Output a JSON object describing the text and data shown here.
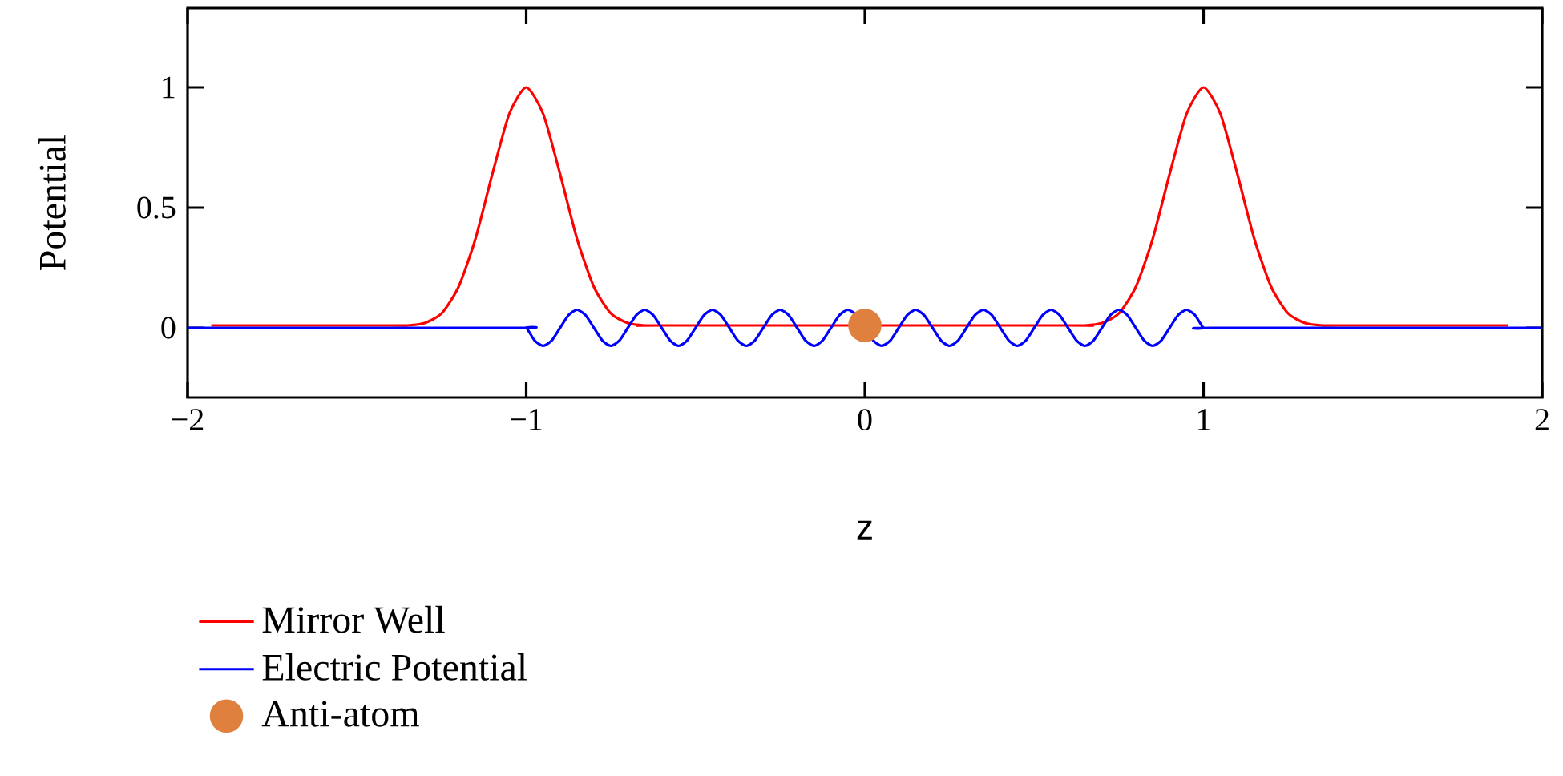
{
  "chart_data": {
    "type": "line",
    "xlabel": "z",
    "ylabel": "Potential",
    "xlim": [
      -2,
      2
    ],
    "ylim": [
      -0.29,
      1.33
    ],
    "xticks": [
      {
        "value": -2,
        "label": "−2"
      },
      {
        "value": -1,
        "label": "−1"
      },
      0,
      1,
      2
    ],
    "yticks": [
      0,
      0.5,
      1
    ],
    "legend": "bottom left",
    "series": [
      {
        "name": "Mirror Well",
        "color": "#ff0000",
        "x": [
          -1.93,
          -1.4,
          -1.35,
          -1.3,
          -1.25,
          -1.2,
          -1.15,
          -1.1,
          -1.05,
          -1,
          -0.95,
          -0.9,
          -0.85,
          -0.8,
          -0.75,
          -0.7,
          -0.65,
          -0.6,
          0.6,
          0.65,
          0.7,
          0.75,
          0.8,
          0.85,
          0.9,
          0.95,
          1,
          1.05,
          1.1,
          1.15,
          1.2,
          1.25,
          1.3,
          1.35,
          1.4,
          1.9
        ],
        "values": [
          0.01,
          0.01,
          0.01,
          0.02,
          0.06,
          0.17,
          0.37,
          0.64,
          0.89,
          1,
          0.89,
          0.64,
          0.37,
          0.17,
          0.06,
          0.02,
          0.01,
          0.01,
          0.01,
          0.01,
          0.02,
          0.06,
          0.17,
          0.37,
          0.64,
          0.89,
          1,
          0.89,
          0.64,
          0.37,
          0.17,
          0.06,
          0.02,
          0.01,
          0.01,
          0.01
        ]
      },
      {
        "name": "Electric Potential",
        "color": "#0000ff",
        "x": [
          -2,
          -1.025,
          -1,
          -0.975,
          -0.95,
          -0.925,
          -0.9,
          -0.875,
          -0.85,
          -0.825,
          -0.8,
          -0.775,
          -0.75,
          -0.725,
          -0.7,
          -0.675,
          -0.65,
          -0.625,
          -0.6,
          -0.575,
          -0.55,
          -0.525,
          -0.5,
          -0.475,
          -0.45,
          -0.425,
          -0.4,
          -0.375,
          -0.35,
          -0.325,
          -0.3,
          -0.275,
          -0.25,
          -0.225,
          -0.2,
          -0.175,
          -0.15,
          -0.125,
          -0.1,
          -0.075,
          -0.05,
          -0.025,
          0,
          0.025,
          0.05,
          0.075,
          0.1,
          0.125,
          0.15,
          0.175,
          0.2,
          0.225,
          0.25,
          0.275,
          0.3,
          0.325,
          0.35,
          0.375,
          0.4,
          0.425,
          0.45,
          0.475,
          0.5,
          0.525,
          0.55,
          0.575,
          0.6,
          0.625,
          0.65,
          0.675,
          0.7,
          0.725,
          0.75,
          0.775,
          0.8,
          0.825,
          0.85,
          0.875,
          0.9,
          0.925,
          0.95,
          0.975,
          1,
          1.025,
          2
        ],
        "values": [
          0,
          0,
          0,
          -0.053,
          -0.075,
          -0.053,
          0,
          0.053,
          0.075,
          0.053,
          0,
          -0.053,
          -0.075,
          -0.053,
          0,
          0.053,
          0.075,
          0.053,
          0,
          -0.053,
          -0.075,
          -0.053,
          0,
          0.053,
          0.075,
          0.053,
          0,
          -0.053,
          -0.075,
          -0.053,
          0,
          0.053,
          0.075,
          0.053,
          0,
          -0.053,
          -0.075,
          -0.053,
          0,
          0.053,
          0.075,
          0.053,
          0,
          -0.053,
          -0.075,
          -0.053,
          0,
          0.053,
          0.075,
          0.053,
          0,
          -0.053,
          -0.075,
          -0.053,
          0,
          0.053,
          0.075,
          0.053,
          0,
          -0.053,
          -0.075,
          -0.053,
          0,
          0.053,
          0.075,
          0.053,
          0,
          -0.053,
          -0.075,
          -0.053,
          0,
          0.053,
          0.075,
          0.053,
          0,
          -0.053,
          -0.075,
          -0.053,
          0,
          0.053,
          0.075,
          0.053,
          0,
          0,
          0
        ]
      },
      {
        "name": "Anti-atom",
        "color": "#e0803f",
        "type": "scatter",
        "x": [
          0
        ],
        "values": [
          0.01
        ]
      }
    ]
  }
}
